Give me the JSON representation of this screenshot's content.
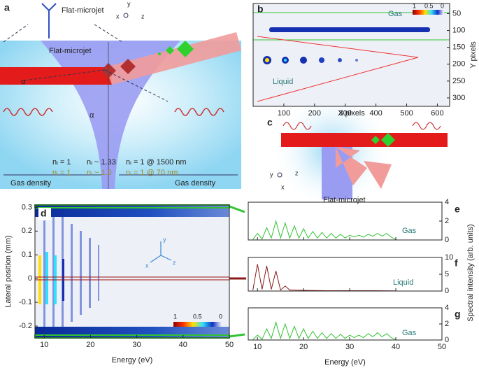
{
  "diagram_a": {
    "panel": "a",
    "jet_label_top": "Flat-microjet",
    "axes": [
      "y",
      "x",
      "z"
    ],
    "jet_label": "Flat-microjet",
    "angles": [
      "α",
      "α"
    ],
    "indices_1500nm": [
      "nᵢ = 1",
      "nᵢ ~ 1.33",
      "nᵢ = 1 @ 1500 nm"
    ],
    "indices_70nm": [
      "nᵢ = 1",
      "nᵢ ~ 1.0",
      "nᵢ = 1 @ 70 nm"
    ],
    "density_labels": [
      "Gas density",
      "Gas density"
    ]
  },
  "diagram_c": {
    "panel": "c",
    "axes": [
      "y",
      "x",
      "z"
    ],
    "jet_label": "Flat-microjet"
  },
  "chart_data": [
    {
      "type": "heatmap",
      "panel": "b",
      "xlabel": "X pixels",
      "ylabel": "Y pixels",
      "xlim": [
        0,
        640
      ],
      "xticks": [
        100,
        200,
        300,
        400,
        500,
        600
      ],
      "ylim": [
        20,
        325
      ],
      "yticks": [
        50,
        100,
        150,
        200,
        250,
        300
      ],
      "y_inverted": true,
      "yaxis_side": "right",
      "annotations": [
        "Gas",
        "Liquid"
      ],
      "colorbar_ticks": [
        1,
        0.5,
        0
      ]
    },
    {
      "type": "heatmap",
      "panel": "d",
      "xlabel": "Energy (eV)",
      "ylabel": "Lateral position (mm)",
      "xlim": [
        8,
        50
      ],
      "xticks": [
        10,
        20,
        30,
        40,
        50
      ],
      "ylim": [
        -0.25,
        0.31
      ],
      "yticks": [
        -0.2,
        -0.1,
        0,
        0.1,
        0.2,
        0.3
      ],
      "yaxis_side": "left",
      "inset_axes": [
        "y",
        "x",
        "z"
      ],
      "colorbar_ticks": [
        1,
        0.5,
        0
      ]
    },
    {
      "type": "line",
      "panel": "e",
      "xlim": [
        8,
        50
      ],
      "xticks": [
        10,
        20,
        30,
        40,
        50
      ],
      "show_xtick_labels": false,
      "ylim": [
        0,
        4
      ],
      "yticks": [
        0,
        2,
        4
      ],
      "yaxis_side": "right",
      "x": [
        9,
        10,
        11,
        12,
        13,
        14,
        15,
        16,
        17,
        18,
        19,
        20,
        21,
        22,
        23,
        24,
        25,
        26,
        27,
        28,
        29,
        30,
        31,
        32,
        33,
        34,
        35,
        36,
        37,
        38,
        39,
        40
      ],
      "series": [
        {
          "name": "Gas",
          "color": "#33c333",
          "values": [
            0.05,
            0.7,
            0.1,
            1.3,
            0.2,
            2.0,
            0.2,
            1.8,
            0.2,
            1.5,
            0.2,
            1.2,
            0.2,
            0.9,
            0.2,
            0.8,
            0.2,
            0.7,
            0.2,
            0.6,
            0.2,
            0.5,
            0.3,
            0.5,
            0.3,
            0.6,
            0.4,
            0.7,
            0.4,
            0.7,
            0.3,
            0.05
          ]
        }
      ]
    },
    {
      "type": "line",
      "panel": "f",
      "xlim": [
        8,
        50
      ],
      "xticks": [
        10,
        20,
        30,
        40,
        50
      ],
      "show_xtick_labels": false,
      "ylim": [
        0,
        10
      ],
      "yticks": [
        0,
        5,
        10
      ],
      "yaxis_side": "right",
      "ylabel": "Spectral intensity (arb. units)",
      "x": [
        9,
        10,
        11,
        12,
        13,
        14,
        15,
        16,
        17,
        18,
        20,
        25,
        30,
        35,
        40
      ],
      "series": [
        {
          "name": "Liquid",
          "color": "#8b1a1a",
          "values": [
            0.2,
            8,
            0.5,
            7.5,
            0.5,
            6,
            0.3,
            1.5,
            0.3,
            0.3,
            0.2,
            0.1,
            0.1,
            0.1,
            0.05
          ]
        }
      ]
    },
    {
      "type": "line",
      "panel": "g",
      "xlabel": "Energy (eV)",
      "xlim": [
        8,
        50
      ],
      "xticks": [
        10,
        20,
        30,
        40,
        50
      ],
      "show_xtick_labels": true,
      "ylim": [
        0,
        4
      ],
      "yticks": [
        0,
        2,
        4
      ],
      "yaxis_side": "right",
      "x": [
        9,
        10,
        11,
        12,
        13,
        14,
        15,
        16,
        17,
        18,
        19,
        20,
        21,
        22,
        23,
        24,
        25,
        26,
        27,
        28,
        29,
        30,
        31,
        32,
        33,
        34,
        35,
        36,
        37,
        38,
        39,
        40
      ],
      "series": [
        {
          "name": "Gas",
          "color": "#33c333",
          "values": [
            0.05,
            0.6,
            0.1,
            1.4,
            0.2,
            2.2,
            0.2,
            2.0,
            0.2,
            1.7,
            0.2,
            1.4,
            0.2,
            1.1,
            0.2,
            0.9,
            0.2,
            0.8,
            0.2,
            0.7,
            0.2,
            0.6,
            0.3,
            0.6,
            0.3,
            0.8,
            0.4,
            0.9,
            0.4,
            0.8,
            0.3,
            0.05
          ]
        }
      ]
    }
  ]
}
